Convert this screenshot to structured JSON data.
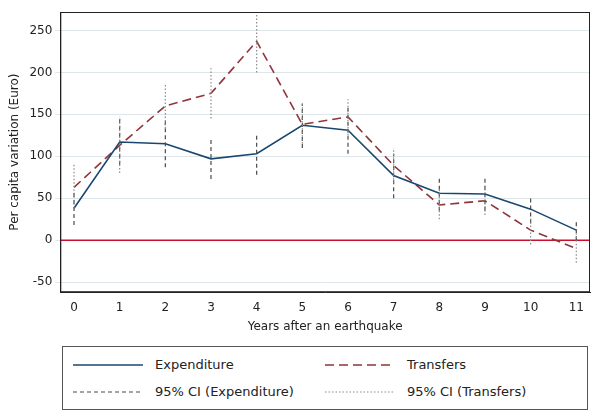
{
  "chart_data": {
    "type": "line",
    "x_label": "Years after an earthquake",
    "y_label": "Per capita variation (Euro)",
    "x": [
      0,
      1,
      2,
      3,
      4,
      5,
      6,
      7,
      8,
      9,
      10,
      11
    ],
    "xlim": [
      -0.3,
      11.3
    ],
    "xticks": [
      0,
      1,
      2,
      3,
      4,
      5,
      6,
      7,
      8,
      9,
      10,
      11
    ],
    "ylim": [
      -62,
      272
    ],
    "yticks": [
      -50,
      0,
      50,
      100,
      150,
      200,
      250
    ],
    "grid": "y",
    "legend": "bottom",
    "reference_lines": [
      {
        "y": 0,
        "color": "#c8102e"
      }
    ],
    "series": [
      {
        "name": "Expenditure",
        "type": "line",
        "color": "#1a476f",
        "line_style": "solid",
        "values": [
          38,
          117,
          115,
          97,
          103,
          137,
          131,
          77,
          56,
          55,
          37,
          12
        ]
      },
      {
        "name": "Transfers",
        "type": "line",
        "color": "#90353b",
        "line_style": "dashed",
        "values": [
          63,
          113,
          160,
          175,
          237,
          138,
          147,
          89,
          42,
          47,
          12,
          -10
        ]
      },
      {
        "name": "95% CI (Expenditure)",
        "type": "errorbar",
        "color": "#4a4a4a",
        "line_style": "dashed",
        "low": [
          18,
          90,
          87,
          73,
          78,
          110,
          103,
          50,
          35,
          35,
          20,
          0
        ],
        "high": [
          58,
          145,
          142,
          122,
          127,
          163,
          158,
          103,
          75,
          75,
          53,
          25
        ]
      },
      {
        "name": "95% CI (Transfers)",
        "type": "errorbar",
        "color": "#8a8a8a",
        "line_style": "dotted",
        "low": [
          38,
          80,
          133,
          145,
          200,
          115,
          125,
          68,
          25,
          30,
          -5,
          -27
        ],
        "high": [
          90,
          147,
          187,
          205,
          272,
          165,
          168,
          110,
          60,
          65,
          28,
          8
        ]
      }
    ]
  }
}
